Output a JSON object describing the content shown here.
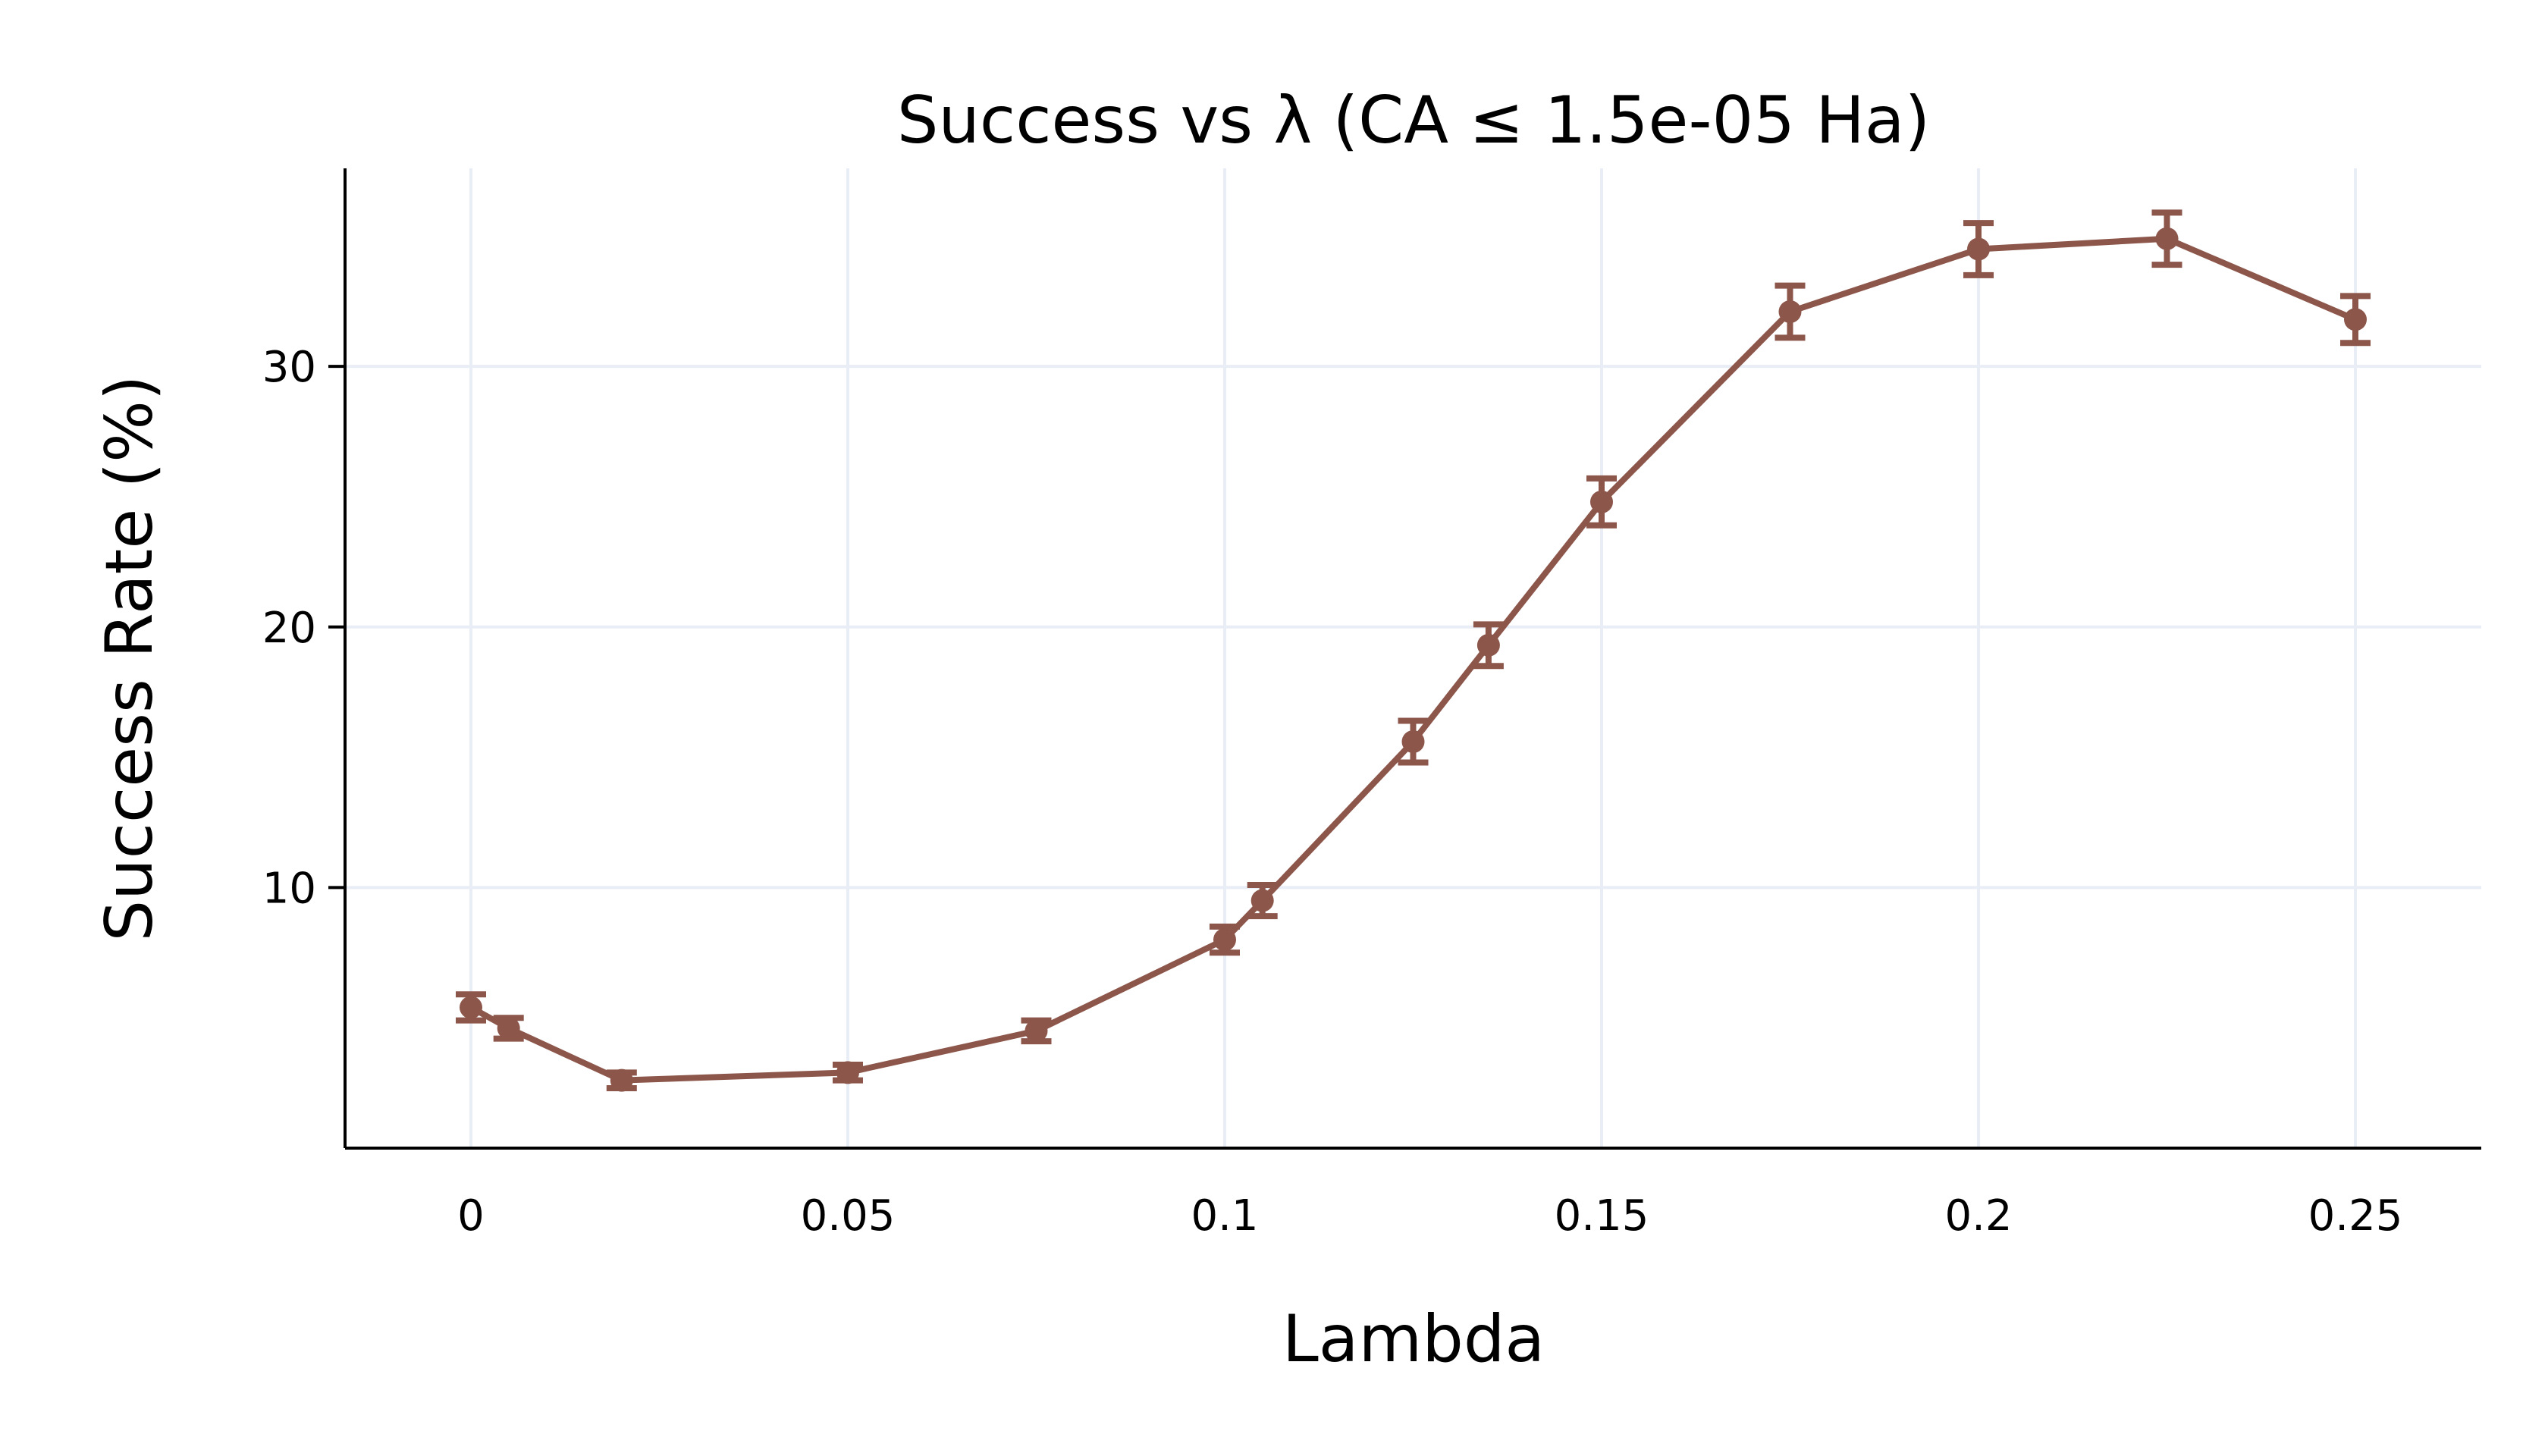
{
  "chart_data": {
    "type": "line",
    "title": "Success vs λ (CA ≤ 1.5e-05 Ha)",
    "xlabel": "Lambda",
    "ylabel": "Success Rate (%)",
    "xlim": [
      -0.0167,
      0.2667
    ],
    "ylim": [
      0,
      37.6
    ],
    "x_ticks": [
      0,
      0.05,
      0.1,
      0.15,
      0.2,
      0.25
    ],
    "x_tick_labels": [
      "0",
      "0.05",
      "0.1",
      "0.15",
      "0.2",
      "0.25"
    ],
    "y_ticks": [
      10,
      20,
      30
    ],
    "y_tick_labels": [
      "10",
      "20",
      "30"
    ],
    "grid": true,
    "series": [
      {
        "name": "Success Rate",
        "color": "#8c564b",
        "x": [
          0,
          0.005,
          0.02,
          0.05,
          0.075,
          0.1,
          0.105,
          0.125,
          0.135,
          0.15,
          0.175,
          0.2,
          0.225,
          0.25
        ],
        "y": [
          5.4,
          4.6,
          2.6,
          2.9,
          4.5,
          8.0,
          9.5,
          15.6,
          19.3,
          24.8,
          32.1,
          34.5,
          34.9,
          31.8
        ],
        "error": [
          0.5,
          0.4,
          0.3,
          0.3,
          0.4,
          0.5,
          0.6,
          0.8,
          0.8,
          0.9,
          1.0,
          1.0,
          1.0,
          0.9
        ]
      }
    ]
  }
}
